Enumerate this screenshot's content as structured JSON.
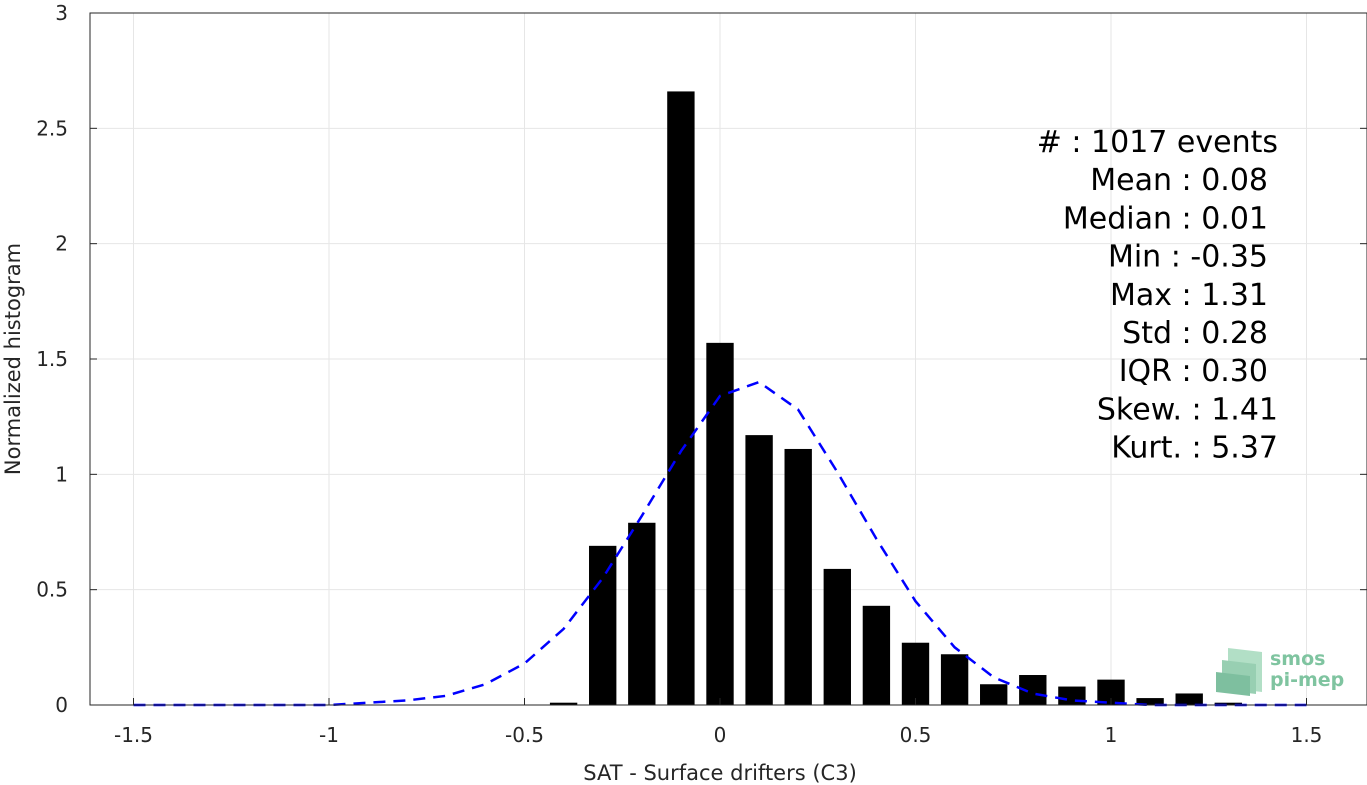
{
  "chart_data": {
    "type": "bar",
    "xlabel": "SAT - Surface drifters (C3)",
    "ylabel": "Normalized histogram",
    "xlim": [
      -1.6,
      1.6
    ],
    "ylim": [
      0,
      3
    ],
    "xticks": [
      "-1.5",
      "-1",
      "-0.5",
      "0",
      "0.5",
      "1",
      "1.5"
    ],
    "yticks": [
      "0",
      "0.5",
      "1",
      "1.5",
      "2",
      "2.5",
      "3"
    ],
    "grid": true,
    "bar_color": "#000000",
    "bar_width": 0.07,
    "bars": [
      {
        "x": -0.4,
        "y": 0.01
      },
      {
        "x": -0.3,
        "y": 0.69
      },
      {
        "x": -0.2,
        "y": 0.79
      },
      {
        "x": -0.1,
        "y": 2.66
      },
      {
        "x": 0.0,
        "y": 1.57
      },
      {
        "x": 0.1,
        "y": 1.17
      },
      {
        "x": 0.2,
        "y": 1.11
      },
      {
        "x": 0.3,
        "y": 0.59
      },
      {
        "x": 0.4,
        "y": 0.43
      },
      {
        "x": 0.5,
        "y": 0.27
      },
      {
        "x": 0.6,
        "y": 0.22
      },
      {
        "x": 0.7,
        "y": 0.09
      },
      {
        "x": 0.8,
        "y": 0.13
      },
      {
        "x": 0.9,
        "y": 0.08
      },
      {
        "x": 1.0,
        "y": 0.11
      },
      {
        "x": 1.1,
        "y": 0.03
      },
      {
        "x": 1.2,
        "y": 0.05
      },
      {
        "x": 1.3,
        "y": 0.01
      }
    ],
    "fit_curve": {
      "style": "dashed",
      "color": "#0000ff",
      "points": [
        {
          "x": -1.5,
          "y": 0.0
        },
        {
          "x": -1.4,
          "y": 0.0
        },
        {
          "x": -1.3,
          "y": 0.0
        },
        {
          "x": -1.2,
          "y": 0.0
        },
        {
          "x": -1.1,
          "y": 0.0
        },
        {
          "x": -1.0,
          "y": 0.0
        },
        {
          "x": -0.9,
          "y": 0.01
        },
        {
          "x": -0.8,
          "y": 0.02
        },
        {
          "x": -0.7,
          "y": 0.04
        },
        {
          "x": -0.6,
          "y": 0.09
        },
        {
          "x": -0.5,
          "y": 0.18
        },
        {
          "x": -0.4,
          "y": 0.33
        },
        {
          "x": -0.3,
          "y": 0.55
        },
        {
          "x": -0.2,
          "y": 0.82
        },
        {
          "x": -0.1,
          "y": 1.1
        },
        {
          "x": 0.0,
          "y": 1.34
        },
        {
          "x": 0.1,
          "y": 1.4
        },
        {
          "x": 0.2,
          "y": 1.28
        },
        {
          "x": 0.3,
          "y": 1.01
        },
        {
          "x": 0.4,
          "y": 0.72
        },
        {
          "x": 0.5,
          "y": 0.45
        },
        {
          "x": 0.6,
          "y": 0.25
        },
        {
          "x": 0.7,
          "y": 0.12
        },
        {
          "x": 0.8,
          "y": 0.05
        },
        {
          "x": 0.9,
          "y": 0.02
        },
        {
          "x": 1.0,
          "y": 0.01
        },
        {
          "x": 1.1,
          "y": 0.0
        },
        {
          "x": 1.2,
          "y": 0.0
        },
        {
          "x": 1.3,
          "y": 0.0
        },
        {
          "x": 1.4,
          "y": 0.0
        },
        {
          "x": 1.5,
          "y": 0.0
        }
      ]
    },
    "stats": [
      "#  : 1017 events",
      "Mean : 0.08",
      "Median : 0.01",
      "Min : -0.35",
      "Max : 1.31",
      "Std : 0.28",
      "IQR : 0.30",
      "Skew. : 1.41",
      "Kurt. : 5.37"
    ]
  },
  "logo": {
    "line1": "smos",
    "line2": "pi-mep",
    "color": "#7fc4a0"
  }
}
